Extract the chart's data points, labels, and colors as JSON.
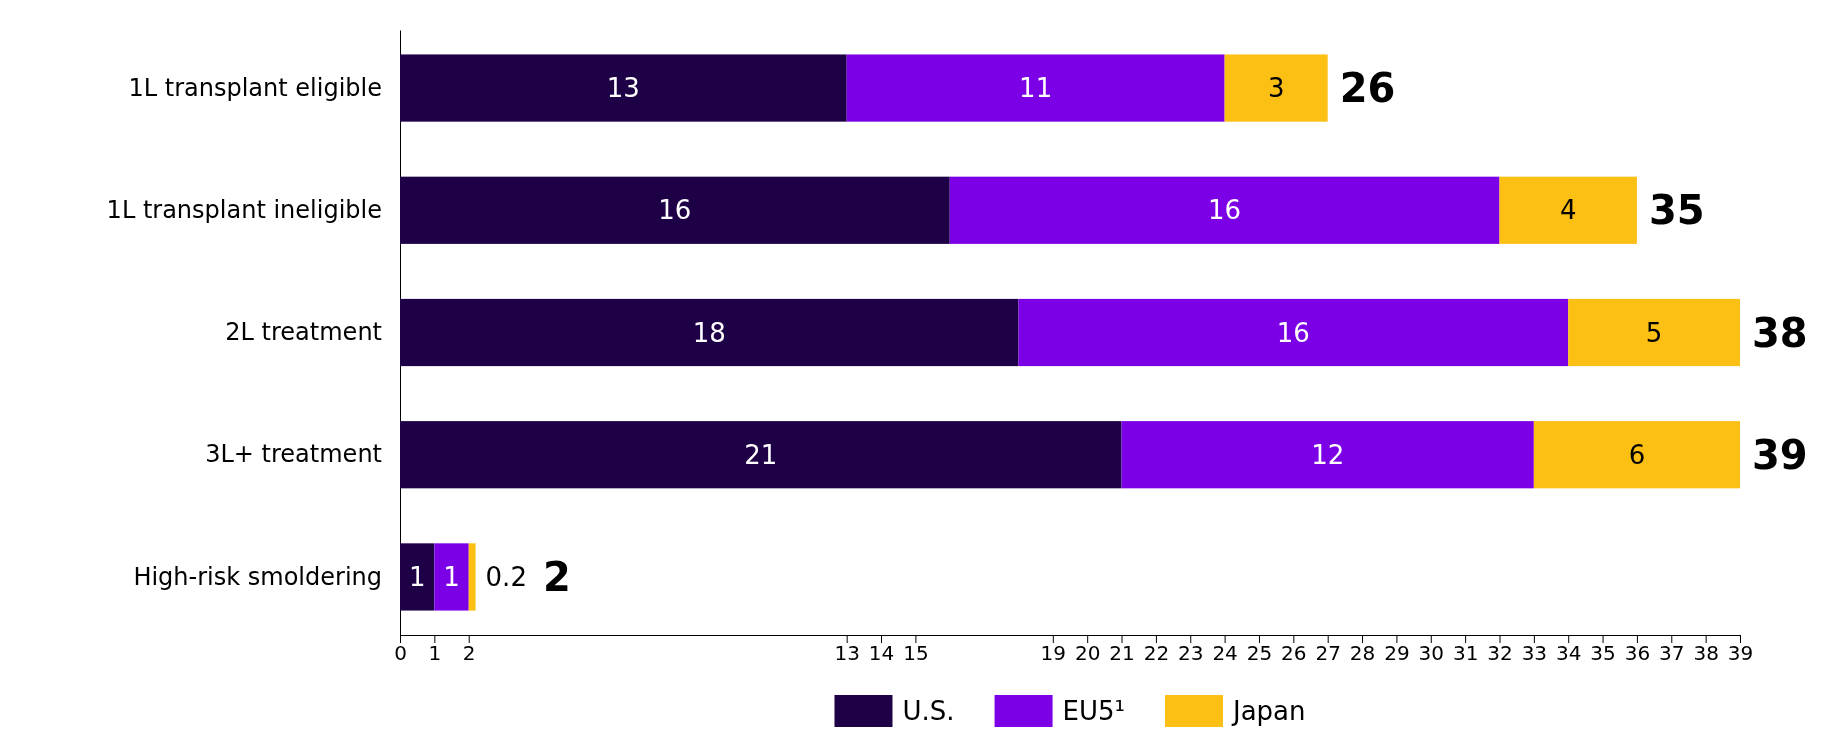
{
  "chart_data": {
    "type": "bar",
    "orientation": "horizontal",
    "stacked": true,
    "categories": [
      "1L transplant eligible",
      "1L transplant ineligible",
      "2L treatment",
      "3L+ treatment",
      "High-risk smoldering"
    ],
    "series": [
      {
        "name": "U.S.",
        "color": "#1e0046",
        "values": [
          13,
          16,
          18,
          21,
          1
        ]
      },
      {
        "name": "EU5¹",
        "color": "#7b00e6",
        "values": [
          11,
          16,
          16,
          12,
          1
        ]
      },
      {
        "name": "Japan",
        "color": "#fcbf13",
        "values": [
          3,
          4,
          5,
          6,
          0.2
        ]
      }
    ],
    "totals": [
      "26",
      "35",
      "38",
      "39",
      "2"
    ],
    "data_labels": true,
    "xlim": [
      0,
      39
    ],
    "xticks": [
      0,
      1,
      2,
      13,
      14,
      15,
      19,
      20,
      21,
      22,
      23,
      24,
      25,
      26,
      27,
      28,
      29,
      30,
      31,
      32,
      33,
      34,
      35,
      36,
      37,
      38,
      39
    ],
    "legend": "bottom"
  }
}
